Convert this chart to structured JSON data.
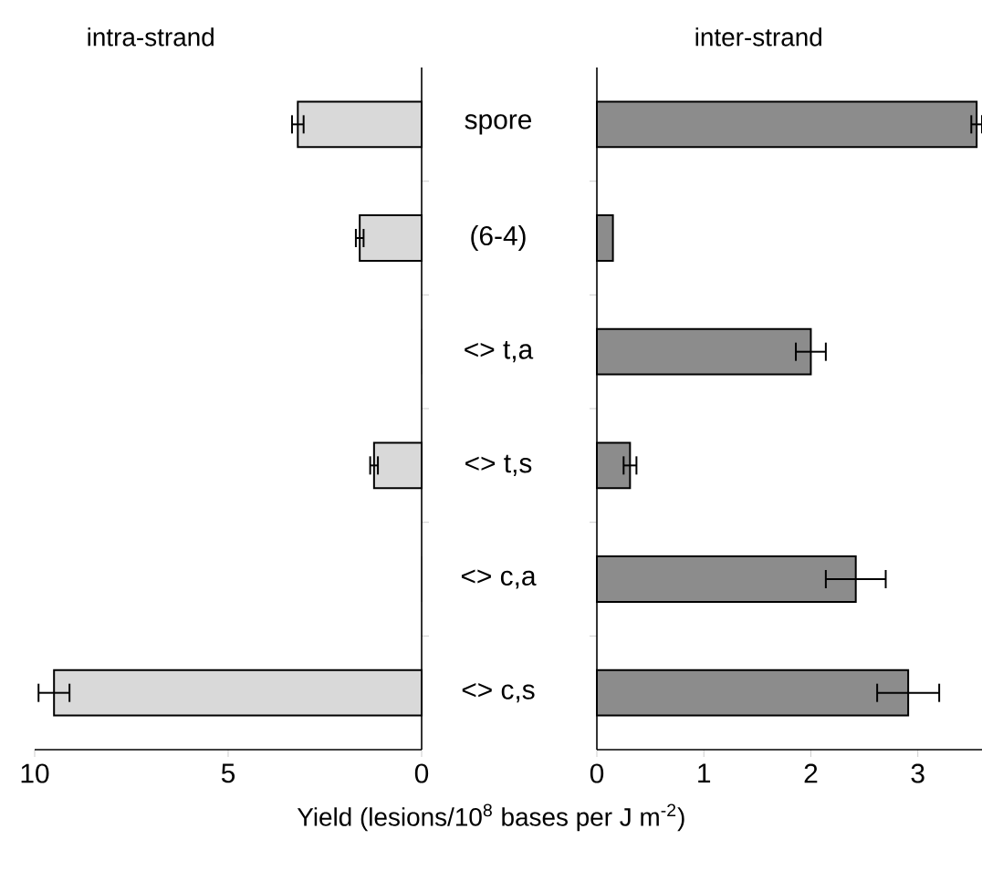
{
  "chart_data": [
    {
      "type": "bar",
      "orientation": "horizontal",
      "title": "intra-strand",
      "xlabel": "Yield (lesions/10$^{8}$ bases per J m$^{-2}$)",
      "categories": [
        "spore",
        "(6-4)",
        "<> t,a",
        "<> t,s",
        "<> c,a",
        "<> c,s"
      ],
      "values": [
        3.2,
        1.6,
        0,
        1.23,
        0,
        9.5
      ],
      "errors": [
        0.15,
        0.1,
        null,
        0.1,
        null,
        0.4
      ],
      "color": "#d9d9d9",
      "xlim": [
        10,
        0
      ],
      "xticks": [
        10,
        5,
        0
      ]
    },
    {
      "type": "bar",
      "orientation": "horizontal",
      "title": "inter-strand",
      "values": [
        3.55,
        0.15,
        2.0,
        0.31,
        2.42,
        2.91
      ],
      "errors": [
        0.05,
        null,
        0.14,
        0.06,
        0.28,
        0.29
      ],
      "color": "#8c8c8c",
      "xlim": [
        0,
        3.6
      ],
      "xticks": [
        0,
        1,
        2,
        3
      ],
      "tick_labels": "x"
    }
  ]
}
